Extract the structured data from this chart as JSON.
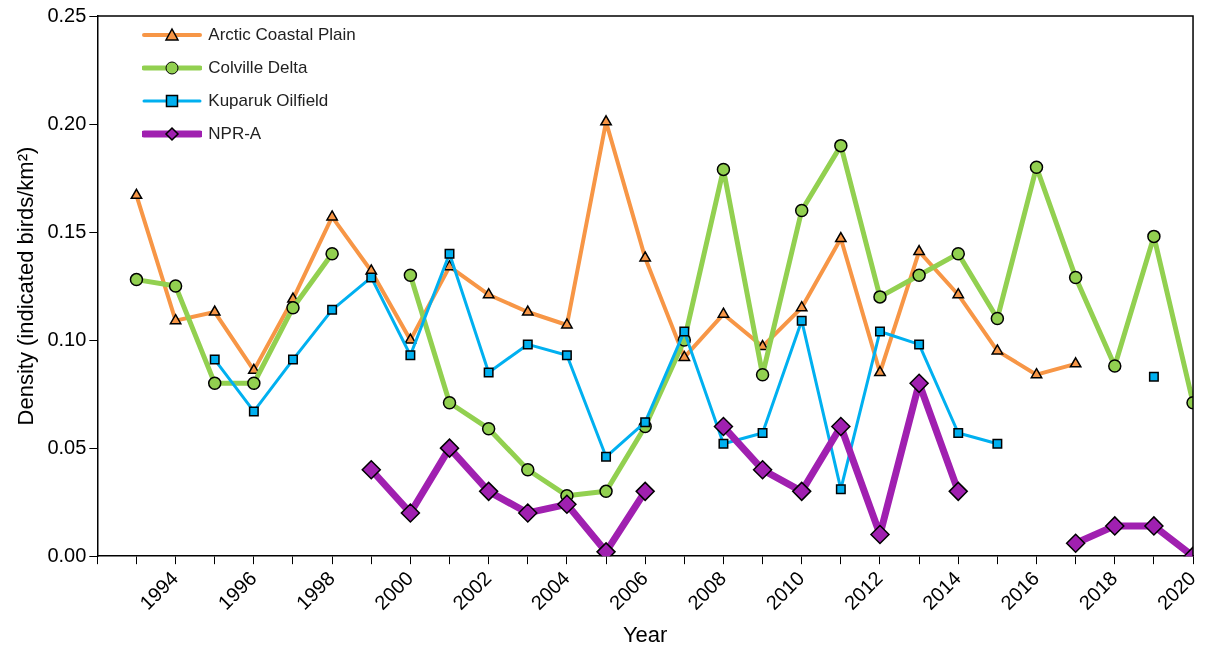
{
  "chart_data": {
    "type": "line",
    "xlabel": "Year",
    "ylabel": "Density (indicated birds/km²)",
    "x": [
      1993,
      1994,
      1995,
      1996,
      1997,
      1998,
      1999,
      2000,
      2001,
      2002,
      2003,
      2004,
      2005,
      2006,
      2007,
      2008,
      2009,
      2010,
      2011,
      2012,
      2013,
      2014,
      2015,
      2016,
      2017,
      2018,
      2019,
      2020
    ],
    "xlim": [
      1992,
      2020
    ],
    "xticks": [
      {
        "value": 1992,
        "label": null
      },
      {
        "value": 1993,
        "label": null
      },
      1994,
      {
        "value": 1995,
        "label": null
      },
      1996,
      {
        "value": 1997,
        "label": null
      },
      1998,
      {
        "value": 1999,
        "label": null
      },
      2000,
      {
        "value": 2001,
        "label": null
      },
      2002,
      {
        "value": 2003,
        "label": null
      },
      2004,
      {
        "value": 2005,
        "label": null
      },
      2006,
      {
        "value": 2007,
        "label": null
      },
      2008,
      {
        "value": 2009,
        "label": null
      },
      2010,
      {
        "value": 2011,
        "label": null
      },
      2012,
      {
        "value": 2013,
        "label": null
      },
      2014,
      {
        "value": 2015,
        "label": null
      },
      2016,
      {
        "value": 2017,
        "label": null
      },
      2018,
      {
        "value": 2019,
        "label": null
      },
      2020
    ],
    "ylim": [
      0,
      0.25
    ],
    "yticks": [
      {
        "value": 0,
        "label": "0.00"
      },
      {
        "value": 0.05,
        "label": "0.05"
      },
      {
        "value": 0.1,
        "label": "0.10"
      },
      {
        "value": 0.15,
        "label": "0.15"
      },
      {
        "value": 0.2,
        "label": "0.20"
      },
      {
        "value": 0.25,
        "label": "0.25"
      }
    ],
    "grid": false,
    "legend": "top left",
    "line_style": "solid",
    "series": [
      {
        "name": "Arctic Coastal Plain",
        "color": "#f79646",
        "marker": "triangle",
        "values": [
          0.167,
          0.109,
          0.113,
          0.086,
          0.119,
          0.157,
          0.132,
          0.1,
          0.134,
          0.121,
          0.113,
          0.107,
          0.201,
          0.138,
          0.092,
          0.112,
          0.097,
          0.115,
          0.147,
          0.085,
          0.141,
          0.121,
          0.095,
          0.084,
          0.089,
          null,
          null,
          null
        ]
      },
      {
        "name": "Colville Delta",
        "color": "#92d050",
        "marker": "circle",
        "values": [
          0.128,
          0.125,
          0.08,
          0.08,
          0.115,
          0.14,
          null,
          0.13,
          0.071,
          0.059,
          0.04,
          0.028,
          0.03,
          0.06,
          0.1,
          0.179,
          0.084,
          0.16,
          0.19,
          0.12,
          0.13,
          0.14,
          0.11,
          0.18,
          0.129,
          0.088,
          0.148,
          0.071
        ]
      },
      {
        "name": "Kuparuk Oilfield",
        "color": "#00b0f0",
        "marker": "square",
        "values": [
          null,
          null,
          0.091,
          0.067,
          0.091,
          0.114,
          0.129,
          0.093,
          0.14,
          0.085,
          0.098,
          0.093,
          0.046,
          0.062,
          0.104,
          0.052,
          0.057,
          0.109,
          0.031,
          0.104,
          0.098,
          0.057,
          0.052,
          null,
          null,
          null,
          0.083,
          null
        ]
      },
      {
        "name": "NPR-A",
        "color": "#a020b0",
        "marker": "diamond",
        "values": [
          null,
          null,
          null,
          null,
          null,
          null,
          0.04,
          0.02,
          0.05,
          0.03,
          0.02,
          0.024,
          0.002,
          0.03,
          null,
          0.06,
          0.04,
          0.03,
          0.06,
          0.01,
          0.08,
          0.03,
          null,
          null,
          0.006,
          0.014,
          0.014,
          0.0
        ]
      }
    ]
  }
}
